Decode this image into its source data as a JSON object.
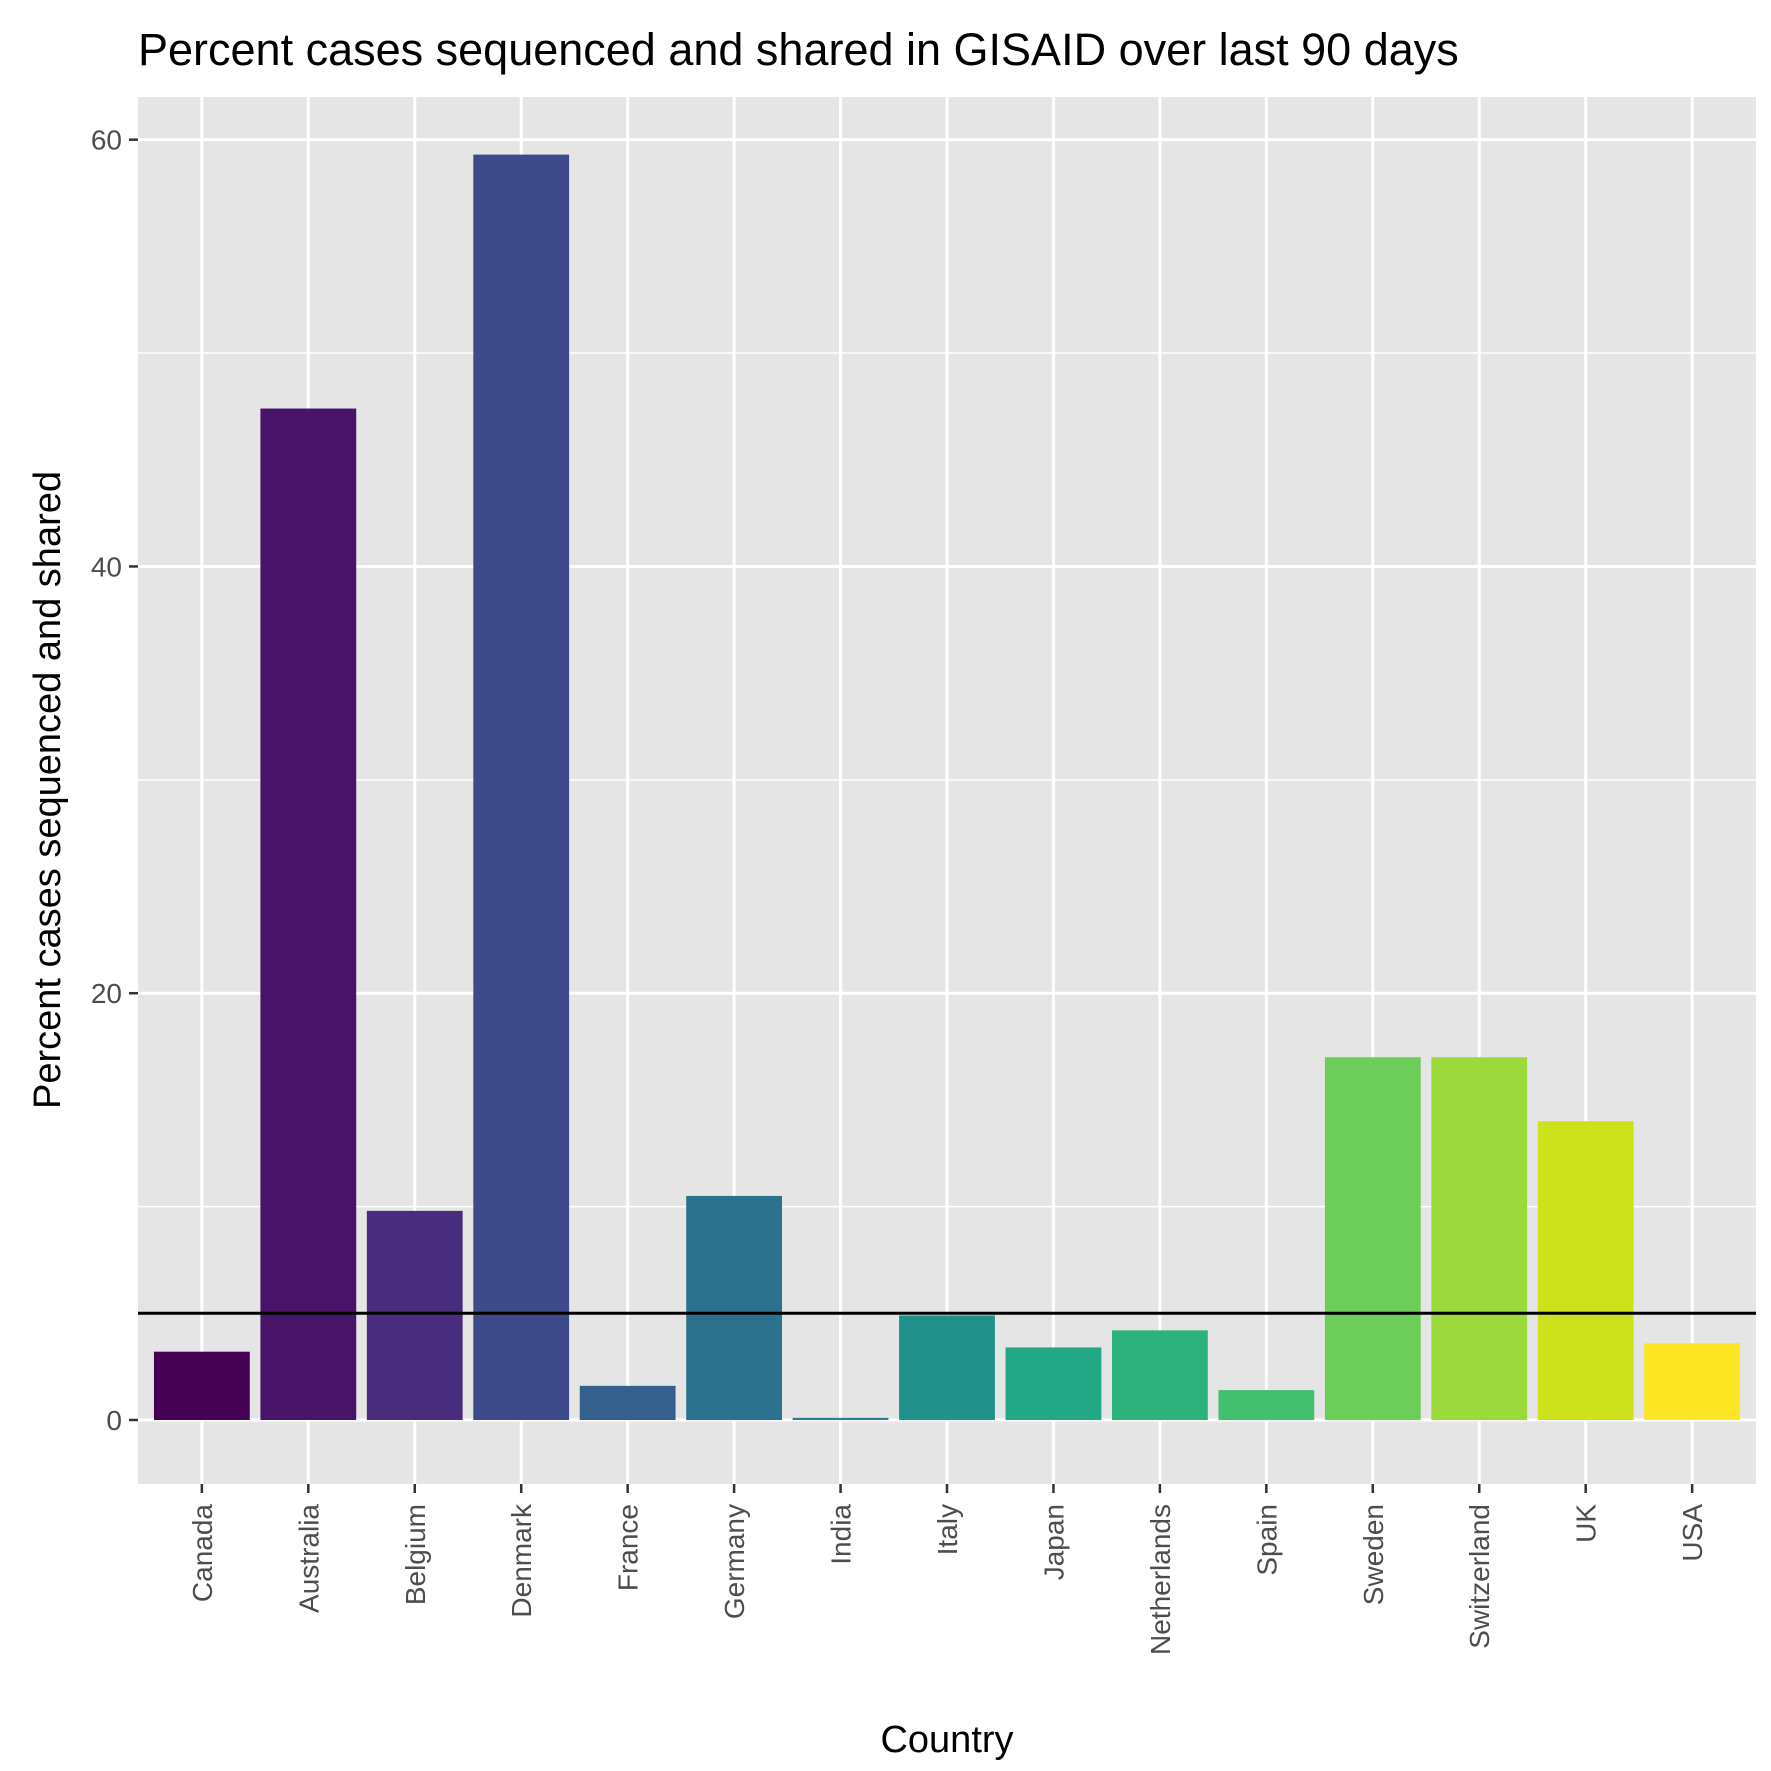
{
  "chart_data": {
    "type": "bar",
    "title": "Percent cases sequenced and shared in GISAID over last 90 days",
    "xlabel": "Country",
    "ylabel": "Percent cases sequenced and shared",
    "categories": [
      "Canada",
      "Australia",
      "Belgium",
      "Denmark",
      "France",
      "Germany",
      "India",
      "Italy",
      "Japan",
      "Netherlands",
      "Spain",
      "Sweden",
      "Switzerland",
      "UK",
      "USA"
    ],
    "values": [
      3.2,
      47.4,
      9.8,
      59.3,
      1.6,
      10.5,
      0.1,
      4.9,
      3.4,
      4.2,
      1.4,
      17.0,
      17.0,
      14.0,
      3.6
    ],
    "colors": [
      "#440154",
      "#481467",
      "#472D7B",
      "#3E4A89",
      "#355F8D",
      "#2C728E",
      "#26828E",
      "#21918C",
      "#22A884",
      "#2DB27D",
      "#44BF70",
      "#6DCD59",
      "#9BD93C",
      "#CDE11D",
      "#FDE725"
    ],
    "reference_line": 5,
    "yticks": [
      0,
      20,
      40,
      60
    ],
    "ylim": [
      -3,
      62
    ],
    "grid": true,
    "legend": "none",
    "panel_background": "#E5E5E5",
    "grid_color": "#FFFFFF",
    "tick_label_color": "#4D4D4D",
    "reference_line_color": "#000000"
  }
}
